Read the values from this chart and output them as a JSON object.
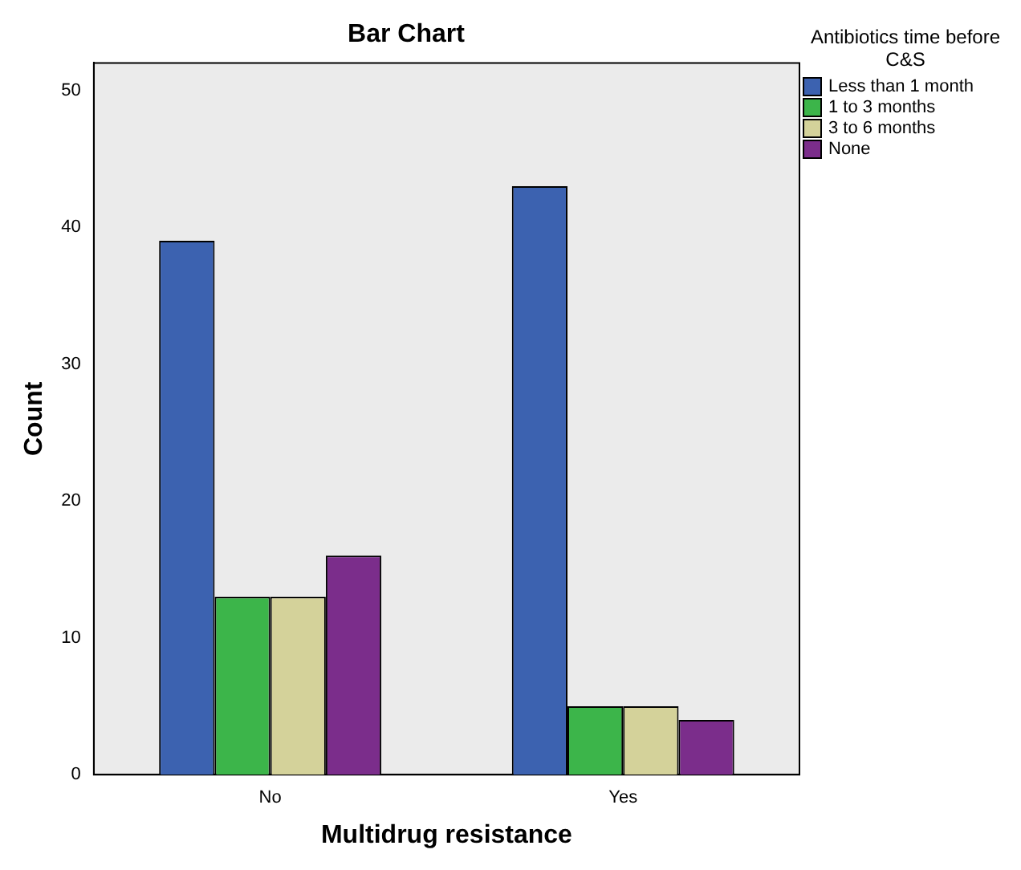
{
  "chart_data": {
    "type": "bar",
    "title": "Bar Chart",
    "xlabel": "Multidrug resistance",
    "ylabel": "Count",
    "legend_title": "Antibiotics time before C&S",
    "categories": [
      "No",
      "Yes"
    ],
    "series": [
      {
        "name": "Less than 1 month",
        "color": "#3c62b0",
        "values": [
          39,
          43
        ]
      },
      {
        "name": "1 to 3 months",
        "color": "#3cb54a",
        "values": [
          13,
          5
        ]
      },
      {
        "name": "3 to 6 months",
        "color": "#d4d29a",
        "values": [
          13,
          5
        ]
      },
      {
        "name": "None",
        "color": "#7b2d8b",
        "values": [
          16,
          4
        ]
      }
    ],
    "ylim": [
      0,
      52
    ],
    "yticks": [
      0,
      10,
      20,
      30,
      40,
      50
    ],
    "grid": false,
    "legend": "top right"
  }
}
